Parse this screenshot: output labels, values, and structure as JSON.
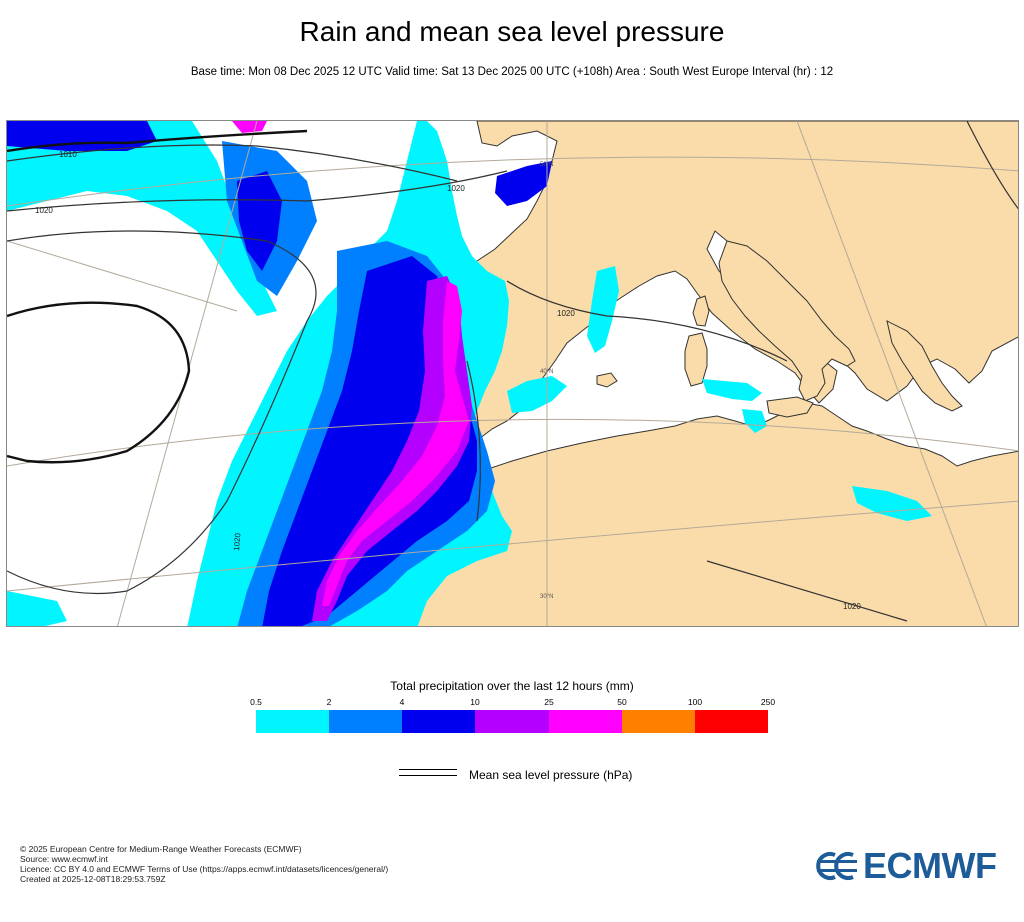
{
  "header": {
    "title": "Rain and mean sea level pressure",
    "subtitle": "Base time: Mon 08 Dec 2025 12 UTC Valid time: Sat 13 Dec 2025 00 UTC (+108h) Area : South West Europe Interval (hr) : 12"
  },
  "map": {
    "isobar_labels": [
      "1010",
      "1020",
      "1020",
      "1020",
      "1020",
      "1020"
    ],
    "graticule_labels": [
      "40°N",
      "30°N",
      "50°N"
    ],
    "colors": {
      "land": "#fadcaa",
      "sea": "#ffffff",
      "coast": "#333333",
      "graticule": "#b3a99a",
      "isobar": "#333333"
    }
  },
  "legend": {
    "title": "Total precipitation over the last 12 hours (mm)",
    "thresholds": [
      "0.5",
      "2",
      "4",
      "10",
      "25",
      "50",
      "100",
      "250"
    ],
    "colors": [
      "#00f5ff",
      "#0080ff",
      "#0000ee",
      "#b300ff",
      "#ff00ff",
      "#ff8000",
      "#ff0000"
    ],
    "pressure_label": "Mean sea level pressure (hPa)"
  },
  "footer": {
    "lines": [
      "© 2025 European Centre for Medium-Range Weather Forecasts (ECMWF)",
      "Source: www.ecmwf.int",
      "Licence: CC BY 4.0 and ECMWF Terms of Use (https://apps.ecmwf.int/datasets/licences/general/)",
      "Created at 2025-12-08T18:29:53.759Z"
    ],
    "logo_text": "ECMWF",
    "logo_color": "#1e5c99"
  }
}
